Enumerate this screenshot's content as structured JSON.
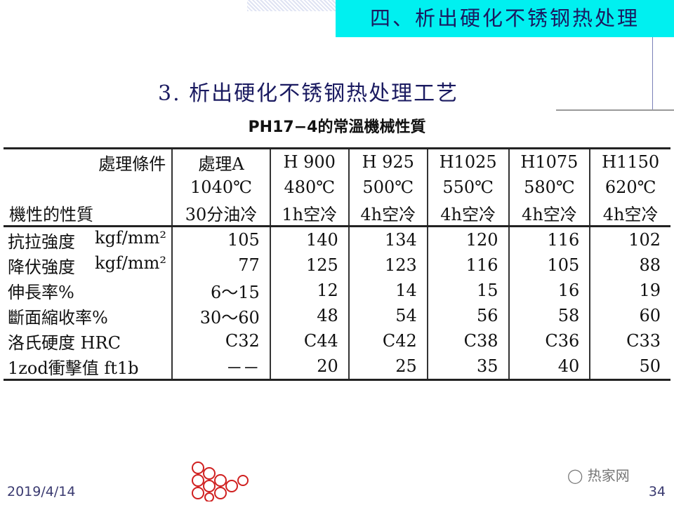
{
  "header": {
    "banner": "四、析出硬化不锈钢热处理"
  },
  "subtitle": "3. 析出硬化不锈钢热处理工艺",
  "table": {
    "title": "PH17−4的常溫機械性質",
    "corner_top": "處理條件",
    "corner_bottom": "機性的性質",
    "columns": [
      {
        "name": "處理A",
        "temp": "1040℃",
        "cool": "30分油冷"
      },
      {
        "name": "H 900",
        "temp": "480℃",
        "cool": "1h空冷"
      },
      {
        "name": "H 925",
        "temp": "500℃",
        "cool": "4h空冷"
      },
      {
        "name": "H1025",
        "temp": "550℃",
        "cool": "4h空冷"
      },
      {
        "name": "H1075",
        "temp": "580℃",
        "cool": "4h空冷"
      },
      {
        "name": "H1150",
        "temp": "620℃",
        "cool": "4h空冷"
      }
    ],
    "rows": [
      {
        "label": "抗拉強度",
        "unit": "kgf/mm²",
        "values": [
          "105",
          "140",
          "134",
          "120",
          "116",
          "102"
        ]
      },
      {
        "label": "降伏強度",
        "unit": "kgf/mm²",
        "values": [
          "77",
          "125",
          "123",
          "116",
          "105",
          "88"
        ]
      },
      {
        "label": "伸長率%",
        "unit": "",
        "values": [
          "6～15",
          "12",
          "14",
          "15",
          "16",
          "19"
        ]
      },
      {
        "label": "斷面縮收率%",
        "unit": "",
        "values": [
          "30～60",
          "48",
          "54",
          "56",
          "58",
          "60"
        ]
      },
      {
        "label": "洛氏硬度 HRC",
        "unit": "",
        "values": [
          "C32",
          "C44",
          "C42",
          "C38",
          "C36",
          "C33"
        ]
      },
      {
        "label": "1zod衝擊值 ft1b",
        "unit": "",
        "values": [
          "－－",
          "20",
          "25",
          "35",
          "40",
          "50"
        ]
      }
    ]
  },
  "footer": {
    "date": "2019/4/14",
    "page": "34",
    "watermark": "热家网"
  },
  "colors": {
    "banner": "#00f0f0",
    "title_text": "#1a1a60",
    "logo": "#d02020"
  }
}
